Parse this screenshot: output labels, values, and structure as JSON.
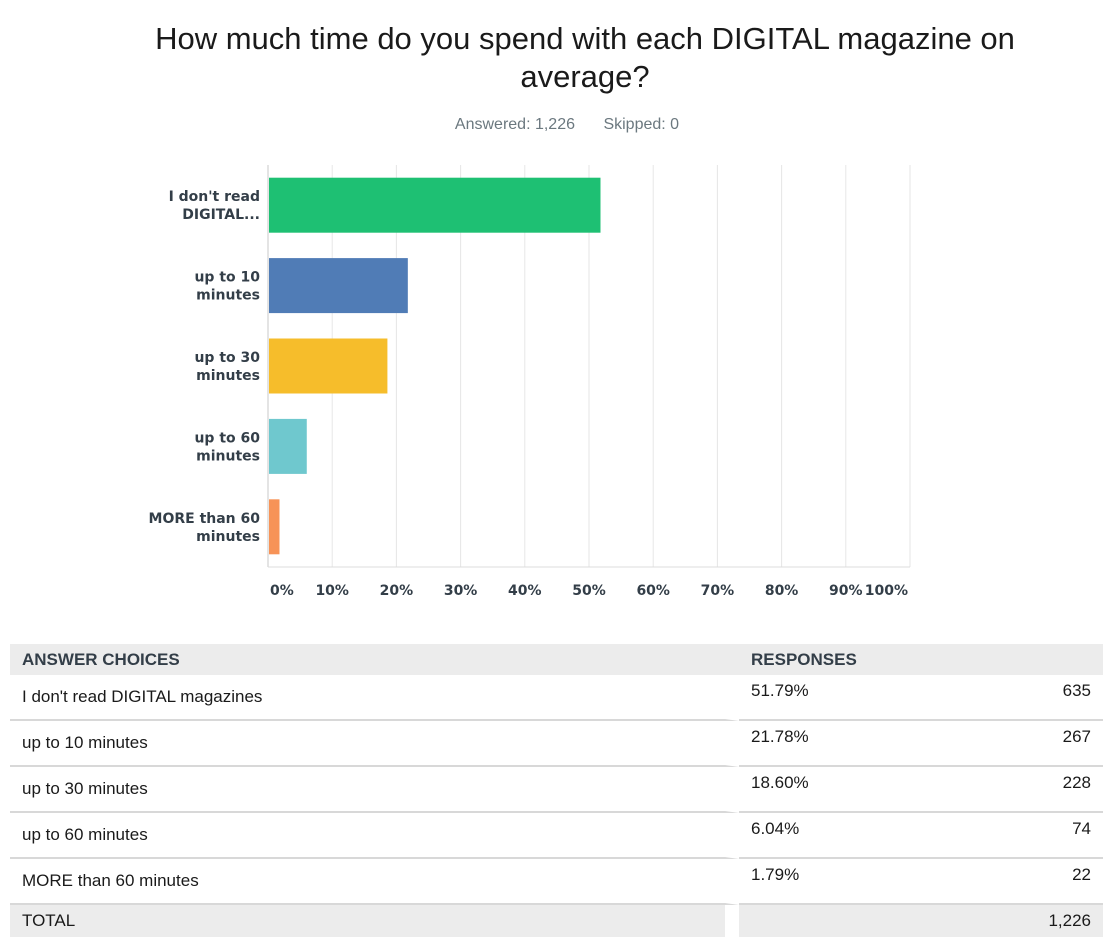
{
  "title": "How much time do you spend with each DIGITAL magazine on average?",
  "answered": "Answered: 1,226",
  "skipped": "Skipped: 0",
  "chart_data": {
    "type": "bar",
    "orientation": "horizontal",
    "categories": [
      [
        "I don't read",
        "DIGITAL..."
      ],
      [
        "up to 10",
        "minutes"
      ],
      [
        "up to 30",
        "minutes"
      ],
      [
        "up to 60",
        "minutes"
      ],
      [
        "MORE than 60",
        "minutes"
      ]
    ],
    "values": [
      51.79,
      21.78,
      18.6,
      6.04,
      1.79
    ],
    "colors": [
      "#1ec073",
      "#507cb6",
      "#f6bd2b",
      "#6fc8ce",
      "#f79357"
    ],
    "xlim": [
      0,
      100
    ],
    "ticks": [
      "0%",
      "10%",
      "20%",
      "30%",
      "40%",
      "50%",
      "60%",
      "70%",
      "80%",
      "90%",
      "100%"
    ],
    "grid": true
  },
  "table": {
    "headers": [
      "ANSWER CHOICES",
      "RESPONSES"
    ],
    "rows": [
      {
        "choice": "I don't read DIGITAL magazines",
        "pct": "51.79%",
        "count": "635"
      },
      {
        "choice": "up to 10 minutes",
        "pct": "21.78%",
        "count": "267"
      },
      {
        "choice": "up to 30 minutes",
        "pct": "18.60%",
        "count": "228"
      },
      {
        "choice": "up to 60 minutes",
        "pct": "6.04%",
        "count": "74"
      },
      {
        "choice": "MORE than 60 minutes",
        "pct": "1.79%",
        "count": "22"
      }
    ],
    "total_label": "TOTAL",
    "total_count": "1,226"
  }
}
